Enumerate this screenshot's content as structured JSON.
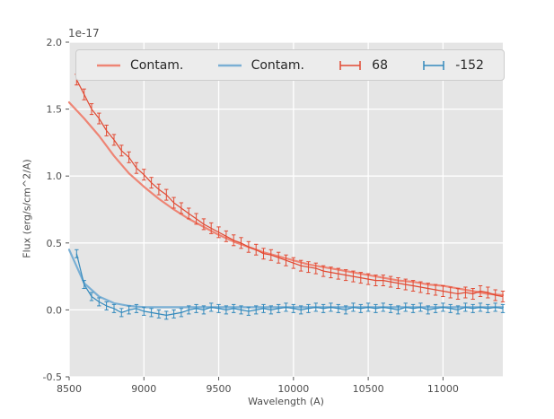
{
  "chart_data": {
    "type": "line",
    "title": "",
    "offset_text": "1e-17",
    "xlabel": "Wavelength (A)",
    "ylabel": "Flux (erg/s/cm^2/A)",
    "xlim": [
      8500,
      11400
    ],
    "ylim": [
      -0.5,
      2.0
    ],
    "xticks": [
      8500,
      9000,
      9500,
      10000,
      10500,
      11000
    ],
    "yticks": [
      -0.5,
      0.0,
      0.5,
      1.0,
      1.5,
      2.0
    ],
    "grid": true,
    "grid_color": "#ffffff",
    "axes_background": "#e5e5e5",
    "legend_position": "top-horizontal",
    "series": [
      {
        "name": "Contam.",
        "type": "line",
        "color": "#ee8575",
        "x": [
          8500,
          8600,
          8700,
          8800,
          8900,
          9000,
          9100,
          9200,
          9300,
          9400,
          9500,
          9600,
          9700,
          9800,
          9900,
          10000,
          10100,
          10200,
          10300,
          10400,
          10500,
          10600,
          10700,
          10800,
          10900,
          11000,
          11100,
          11200,
          11300,
          11400
        ],
        "y": [
          1.55,
          1.43,
          1.3,
          1.15,
          1.02,
          0.92,
          0.83,
          0.75,
          0.68,
          0.62,
          0.56,
          0.51,
          0.47,
          0.43,
          0.4,
          0.37,
          0.34,
          0.32,
          0.3,
          0.28,
          0.26,
          0.24,
          0.22,
          0.21,
          0.19,
          0.18,
          0.16,
          0.14,
          0.12,
          0.11
        ]
      },
      {
        "name": "Contam.",
        "type": "line",
        "color": "#7aafd4",
        "x": [
          8500,
          8600,
          8700,
          8800,
          8900,
          9000,
          9100,
          9200,
          9300,
          9400,
          9500,
          9600,
          9700,
          9800,
          9900,
          10000,
          10100,
          10200,
          10300,
          10400,
          10500,
          10600,
          10700,
          10800,
          10900,
          11000,
          11100,
          11200,
          11300,
          11400
        ],
        "y": [
          0.45,
          0.2,
          0.1,
          0.05,
          0.03,
          0.02,
          0.02,
          0.02,
          0.02,
          0.02,
          0.02,
          0.02,
          0.02,
          0.02,
          0.02,
          0.02,
          0.02,
          0.02,
          0.02,
          0.02,
          0.02,
          0.02,
          0.02,
          0.02,
          0.02,
          0.02,
          0.02,
          0.02,
          0.02,
          0.02
        ]
      },
      {
        "name": "68",
        "type": "errorbar",
        "color": "#e24a33",
        "yerr": 0.04,
        "x": [
          8550,
          8600,
          8650,
          8700,
          8750,
          8800,
          8850,
          8900,
          8950,
          9000,
          9050,
          9100,
          9150,
          9200,
          9250,
          9300,
          9350,
          9400,
          9450,
          9500,
          9550,
          9600,
          9650,
          9700,
          9750,
          9800,
          9850,
          9900,
          9950,
          10000,
          10050,
          10100,
          10150,
          10200,
          10250,
          10300,
          10350,
          10400,
          10450,
          10500,
          10550,
          10600,
          10650,
          10700,
          10750,
          10800,
          10850,
          10900,
          10950,
          11000,
          11050,
          11100,
          11150,
          11200,
          11250,
          11300,
          11350,
          11400
        ],
        "y": [
          1.72,
          1.61,
          1.5,
          1.43,
          1.34,
          1.27,
          1.19,
          1.14,
          1.06,
          1.01,
          0.95,
          0.9,
          0.86,
          0.8,
          0.76,
          0.72,
          0.68,
          0.64,
          0.61,
          0.58,
          0.55,
          0.52,
          0.5,
          0.47,
          0.45,
          0.42,
          0.41,
          0.39,
          0.37,
          0.35,
          0.33,
          0.32,
          0.31,
          0.29,
          0.28,
          0.27,
          0.26,
          0.25,
          0.24,
          0.23,
          0.22,
          0.22,
          0.21,
          0.2,
          0.19,
          0.18,
          0.17,
          0.16,
          0.15,
          0.14,
          0.13,
          0.12,
          0.13,
          0.12,
          0.14,
          0.13,
          0.11,
          0.1
        ]
      },
      {
        "name": "-152",
        "type": "errorbar",
        "color": "#348abd",
        "yerr": 0.03,
        "x": [
          8550,
          8600,
          8650,
          8700,
          8750,
          8800,
          8850,
          8900,
          8950,
          9000,
          9050,
          9100,
          9150,
          9200,
          9250,
          9300,
          9350,
          9400,
          9450,
          9500,
          9550,
          9600,
          9650,
          9700,
          9750,
          9800,
          9850,
          9900,
          9950,
          10000,
          10050,
          10100,
          10150,
          10200,
          10250,
          10300,
          10350,
          10400,
          10450,
          10500,
          10550,
          10600,
          10650,
          10700,
          10750,
          10800,
          10850,
          10900,
          10950,
          11000,
          11050,
          11100,
          11150,
          11200,
          11250,
          11300,
          11350,
          11400
        ],
        "y": [
          0.42,
          0.19,
          0.1,
          0.06,
          0.03,
          0.01,
          -0.02,
          0.0,
          0.01,
          -0.01,
          -0.02,
          -0.03,
          -0.04,
          -0.03,
          -0.02,
          0.0,
          0.01,
          0.0,
          0.02,
          0.01,
          0.0,
          0.01,
          0.0,
          -0.01,
          0.0,
          0.01,
          0.0,
          0.01,
          0.02,
          0.01,
          0.0,
          0.01,
          0.02,
          0.01,
          0.02,
          0.01,
          0.0,
          0.02,
          0.01,
          0.02,
          0.01,
          0.02,
          0.01,
          0.0,
          0.02,
          0.01,
          0.02,
          0.0,
          0.01,
          0.02,
          0.01,
          0.0,
          0.02,
          0.01,
          0.02,
          0.01,
          0.02,
          0.01
        ]
      }
    ]
  }
}
